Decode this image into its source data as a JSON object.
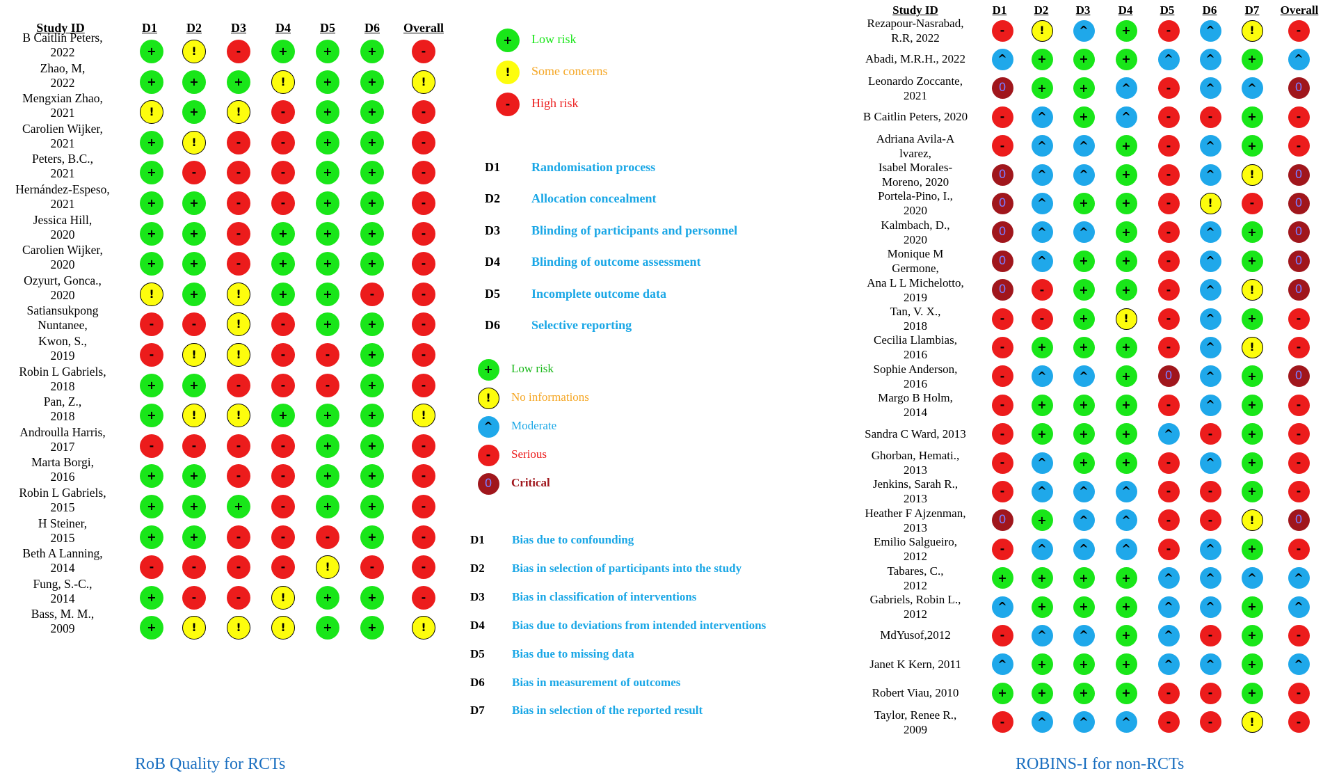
{
  "rob": {
    "caption": "RoB Quality for RCTs",
    "headers": [
      "Study ID",
      "D1",
      "D2",
      "D3",
      "D4",
      "D5",
      "D6",
      "Overall"
    ],
    "rows": [
      {
        "label": "B Caitlin Peters,\n2022",
        "cells": [
          "L",
          "S",
          "H",
          "L",
          "L",
          "L",
          "H"
        ]
      },
      {
        "label": "Zhao, M,\n2022",
        "cells": [
          "L",
          "L",
          "L",
          "S",
          "L",
          "L",
          "S"
        ]
      },
      {
        "label": "Mengxian Zhao,\n2021",
        "cells": [
          "S",
          "L",
          "S",
          "H",
          "L",
          "L",
          "H"
        ]
      },
      {
        "label": "Carolien Wijker,\n2021",
        "cells": [
          "L",
          "S",
          "H",
          "H",
          "L",
          "L",
          "H"
        ]
      },
      {
        "label": "Peters, B.C.,\n2021",
        "cells": [
          "L",
          "H",
          "H",
          "H",
          "L",
          "L",
          "H"
        ]
      },
      {
        "label": "Hernández-Espeso,\n2021",
        "cells": [
          "L",
          "L",
          "H",
          "H",
          "L",
          "L",
          "H"
        ]
      },
      {
        "label": "Jessica Hill,\n2020",
        "cells": [
          "L",
          "L",
          "H",
          "L",
          "L",
          "L",
          "H"
        ]
      },
      {
        "label": "Carolien Wijker,\n2020",
        "cells": [
          "L",
          "L",
          "H",
          "L",
          "L",
          "L",
          "H"
        ]
      },
      {
        "label": "Ozyurt, Gonca.,\n2020",
        "cells": [
          "S",
          "L",
          "S",
          "L",
          "L",
          "H",
          "H"
        ]
      },
      {
        "label": "Satiansukpong\nNuntanee,",
        "cells": [
          "H",
          "H",
          "S",
          "H",
          "L",
          "L",
          "H"
        ]
      },
      {
        "label": "Kwon, S.,\n2019",
        "cells": [
          "H",
          "S",
          "S",
          "H",
          "H",
          "L",
          "H"
        ]
      },
      {
        "label": "Robin L Gabriels,\n2018",
        "cells": [
          "L",
          "L",
          "H",
          "H",
          "H",
          "L",
          "H"
        ]
      },
      {
        "label": "Pan, Z.,\n2018",
        "cells": [
          "L",
          "S",
          "S",
          "L",
          "L",
          "L",
          "S"
        ]
      },
      {
        "label": "Androulla Harris,\n2017",
        "cells": [
          "H",
          "H",
          "H",
          "H",
          "L",
          "L",
          "H"
        ]
      },
      {
        "label": "Marta Borgi,\n2016",
        "cells": [
          "L",
          "L",
          "H",
          "H",
          "L",
          "L",
          "H"
        ]
      },
      {
        "label": "Robin L Gabriels,\n2015",
        "cells": [
          "L",
          "L",
          "L",
          "H",
          "L",
          "L",
          "H"
        ]
      },
      {
        "label": "H Steiner,\n2015",
        "cells": [
          "L",
          "L",
          "H",
          "H",
          "H",
          "L",
          "H"
        ]
      },
      {
        "label": "Beth A Lanning,\n2014",
        "cells": [
          "H",
          "H",
          "H",
          "H",
          "S",
          "H",
          "H"
        ]
      },
      {
        "label": "Fung, S.-C.,\n2014",
        "cells": [
          "L",
          "H",
          "H",
          "S",
          "L",
          "L",
          "H"
        ]
      },
      {
        "label": "Bass, M. M.,\n2009",
        "cells": [
          "L",
          "S",
          "S",
          "S",
          "L",
          "L",
          "S"
        ]
      }
    ]
  },
  "rob_legend": [
    {
      "key": "L",
      "label": "Low risk",
      "color": "#19e619"
    },
    {
      "key": "S",
      "label": "Some concerns",
      "color": "#f5a623"
    },
    {
      "key": "H",
      "label": "High risk",
      "color": "#ec1c1c"
    }
  ],
  "rob_domains": [
    {
      "code": "D1",
      "label": "Randomisation process"
    },
    {
      "code": "D2",
      "label": "Allocation concealment"
    },
    {
      "code": "D3",
      "label": "Blinding of participants and personnel"
    },
    {
      "code": "D4",
      "label": "Blinding of outcome assessment"
    },
    {
      "code": "D5",
      "label": "Incomplete outcome data"
    },
    {
      "code": "D6",
      "label": "Selective reporting"
    }
  ],
  "robins_legend": [
    {
      "key": "L",
      "label": "Low risk",
      "color": "#19b819"
    },
    {
      "key": "N",
      "label": "No informations",
      "color": "#f5a623"
    },
    {
      "key": "M",
      "label": "Moderate",
      "color": "#1aa7e6"
    },
    {
      "key": "SE",
      "label": "Serious",
      "color": "#ec1c1c"
    },
    {
      "key": "C",
      "label": "Critical",
      "color": "#a0161c"
    }
  ],
  "robins_domains": [
    {
      "code": "D1",
      "label": "Bias due to confounding"
    },
    {
      "code": "D2",
      "label": "Bias in selection of participants into the study"
    },
    {
      "code": "D3",
      "label": "Bias in classification of interventions"
    },
    {
      "code": "D4",
      "label": "Bias due to deviations from intended interventions"
    },
    {
      "code": "D5",
      "label": "Bias due to missing data"
    },
    {
      "code": "D6",
      "label": "Bias in measurement of outcomes"
    },
    {
      "code": "D7",
      "label": "Bias in selection of the reported result"
    }
  ],
  "robins": {
    "caption": "ROBINS-I for non-RCTs",
    "headers": [
      "Study ID",
      "D1",
      "D2",
      "D3",
      "D4",
      "D5",
      "D6",
      "D7",
      "Overall"
    ],
    "rows": [
      {
        "label": "Rezapour-Nasrabad,\nR.R, 2022",
        "cells": [
          "SE",
          "N",
          "M",
          "L",
          "SE",
          "M",
          "N",
          "SE"
        ]
      },
      {
        "label": "Abadi, M.R.H., 2022",
        "cells": [
          "M",
          "L",
          "L",
          "L",
          "M",
          "M",
          "L",
          "M"
        ]
      },
      {
        "label": "Leonardo Zoccante,\n2021",
        "cells": [
          "C",
          "L",
          "L",
          "M",
          "SE",
          "M",
          "M",
          "C"
        ]
      },
      {
        "label": "B Caitlin Peters, 2020",
        "cells": [
          "SE",
          "M",
          "L",
          "M",
          "SE",
          "SE",
          "L",
          "SE"
        ]
      },
      {
        "label": "Adriana Avila-A\nlvarez,",
        "cells": [
          "SE",
          "M",
          "M",
          "L",
          "SE",
          "M",
          "L",
          "SE"
        ]
      },
      {
        "label": "Isabel Morales-\nMoreno, 2020",
        "cells": [
          "C",
          "M",
          "M",
          "L",
          "SE",
          "M",
          "N",
          "C"
        ]
      },
      {
        "label": "Portela-Pino, I.,\n2020",
        "cells": [
          "C",
          "M",
          "L",
          "L",
          "SE",
          "N",
          "SE",
          "C"
        ]
      },
      {
        "label": "Kalmbach, D.,\n2020",
        "cells": [
          "C",
          "M",
          "M",
          "L",
          "SE",
          "M",
          "L",
          "C"
        ]
      },
      {
        "label": "Monique M\nGermone,",
        "cells": [
          "C",
          "M",
          "L",
          "L",
          "SE",
          "M",
          "L",
          "C"
        ]
      },
      {
        "label": "Ana L L Michelotto,\n2019",
        "cells": [
          "C",
          "SE",
          "L",
          "L",
          "SE",
          "M",
          "N",
          "C"
        ]
      },
      {
        "label": "Tan, V. X.,\n2018",
        "cells": [
          "SE",
          "SE",
          "L",
          "N",
          "SE",
          "M",
          "L",
          "SE"
        ]
      },
      {
        "label": "Cecilia Llambias,\n2016",
        "cells": [
          "SE",
          "L",
          "L",
          "L",
          "SE",
          "M",
          "N",
          "SE"
        ]
      },
      {
        "label": "Sophie Anderson,\n2016",
        "cells": [
          "SE",
          "M",
          "M",
          "L",
          "C",
          "M",
          "L",
          "C"
        ]
      },
      {
        "label": "Margo B Holm,\n2014",
        "cells": [
          "SE",
          "L",
          "L",
          "L",
          "SE",
          "M",
          "L",
          "SE"
        ]
      },
      {
        "label": "Sandra C Ward, 2013",
        "cells": [
          "SE",
          "L",
          "L",
          "L",
          "M",
          "SE",
          "L",
          "SE"
        ]
      },
      {
        "label": "Ghorban, Hemati.,\n2013",
        "cells": [
          "SE",
          "M",
          "L",
          "L",
          "SE",
          "M",
          "L",
          "SE"
        ]
      },
      {
        "label": "Jenkins, Sarah R.,\n2013",
        "cells": [
          "SE",
          "M",
          "M",
          "M",
          "SE",
          "SE",
          "L",
          "SE"
        ]
      },
      {
        "label": "Heather F Ajzenman,\n2013",
        "cells": [
          "C",
          "L",
          "M",
          "M",
          "SE",
          "SE",
          "N",
          "C"
        ]
      },
      {
        "label": "Emilio Salgueiro,\n2012",
        "cells": [
          "SE",
          "M",
          "M",
          "M",
          "SE",
          "M",
          "L",
          "SE"
        ]
      },
      {
        "label": "Tabares, C.,\n2012",
        "cells": [
          "L",
          "L",
          "L",
          "L",
          "M",
          "M",
          "M",
          "M"
        ]
      },
      {
        "label": "Gabriels, Robin L.,\n2012",
        "cells": [
          "M",
          "L",
          "L",
          "L",
          "M",
          "M",
          "L",
          "M"
        ]
      },
      {
        "label": "MdYusof,2012",
        "cells": [
          "SE",
          "M",
          "M",
          "L",
          "M",
          "SE",
          "L",
          "SE"
        ]
      },
      {
        "label": "Janet K Kern, 2011",
        "cells": [
          "M",
          "L",
          "L",
          "L",
          "M",
          "M",
          "L",
          "M"
        ]
      },
      {
        "label": "Robert Viau, 2010",
        "cells": [
          "L",
          "L",
          "L",
          "L",
          "SE",
          "SE",
          "L",
          "SE"
        ]
      },
      {
        "label": "Taylor, Renee R.,\n2009",
        "cells": [
          "SE",
          "M",
          "M",
          "M",
          "SE",
          "SE",
          "N",
          "SE"
        ]
      }
    ]
  }
}
